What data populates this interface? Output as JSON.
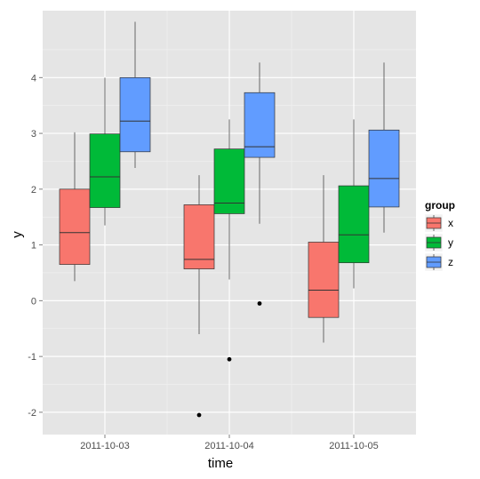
{
  "chart_data": {
    "type": "boxplot",
    "xlabel": "time",
    "ylabel": "y",
    "categories": [
      "2011-10-03",
      "2011-10-04",
      "2011-10-05"
    ],
    "y_ticks": [
      "-2",
      "-1",
      "0",
      "1",
      "2",
      "3",
      "4"
    ],
    "y_tick_values": [
      -2,
      -1,
      0,
      1,
      2,
      3,
      4
    ],
    "ylim": [
      -2.4,
      5.2
    ],
    "grid": true,
    "legend": {
      "title": "group",
      "placement": "right",
      "entries": [
        "x",
        "y",
        "z"
      ]
    },
    "series": [
      {
        "name": "x",
        "color": "#F8766D",
        "boxes": [
          {
            "category": "2011-10-03",
            "lower_whisker": 0.35,
            "q1": 0.65,
            "median": 1.22,
            "q3": 2.0,
            "upper_whisker": 3.02,
            "outliers": []
          },
          {
            "category": "2011-10-04",
            "lower_whisker": -0.6,
            "q1": 0.57,
            "median": 0.74,
            "q3": 1.72,
            "upper_whisker": 2.25,
            "outliers": [
              -2.05
            ]
          },
          {
            "category": "2011-10-05",
            "lower_whisker": -0.75,
            "q1": -0.3,
            "median": 0.19,
            "q3": 1.05,
            "upper_whisker": 2.25,
            "outliers": []
          }
        ]
      },
      {
        "name": "y",
        "color": "#00BA38",
        "boxes": [
          {
            "category": "2011-10-03",
            "lower_whisker": 1.35,
            "q1": 1.67,
            "median": 2.22,
            "q3": 2.99,
            "upper_whisker": 4.0,
            "outliers": []
          },
          {
            "category": "2011-10-04",
            "lower_whisker": 0.38,
            "q1": 1.56,
            "median": 1.75,
            "q3": 2.72,
            "upper_whisker": 3.25,
            "outliers": [
              -1.05
            ]
          },
          {
            "category": "2011-10-05",
            "lower_whisker": 0.22,
            "q1": 0.68,
            "median": 1.18,
            "q3": 2.06,
            "upper_whisker": 3.25,
            "outliers": []
          }
        ]
      },
      {
        "name": "z",
        "color": "#619CFF",
        "boxes": [
          {
            "category": "2011-10-03",
            "lower_whisker": 2.38,
            "q1": 2.67,
            "median": 3.22,
            "q3": 4.0,
            "upper_whisker": 5.0,
            "outliers": []
          },
          {
            "category": "2011-10-04",
            "lower_whisker": 1.38,
            "q1": 2.57,
            "median": 2.76,
            "q3": 3.73,
            "upper_whisker": 4.27,
            "outliers": [
              -0.05
            ]
          },
          {
            "category": "2011-10-05",
            "lower_whisker": 1.22,
            "q1": 1.68,
            "median": 2.19,
            "q3": 3.06,
            "upper_whisker": 4.27,
            "outliers": []
          }
        ]
      }
    ]
  }
}
